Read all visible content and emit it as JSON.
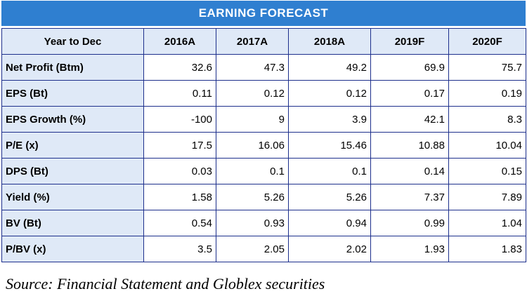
{
  "title": "EARNING FORECAST",
  "header": [
    "Year to Dec",
    "2016A",
    "2017A",
    "2018A",
    "2019F",
    "2020F"
  ],
  "rows": [
    {
      "label": "Net Profit (Btm)",
      "values": [
        "32.6",
        "47.3",
        "49.2",
        "69.9",
        "75.7"
      ]
    },
    {
      "label": "EPS (Bt)",
      "values": [
        "0.11",
        "0.12",
        "0.12",
        "0.17",
        "0.19"
      ]
    },
    {
      "label": "EPS Growth (%)",
      "values": [
        "-100",
        "9",
        "3.9",
        "42.1",
        "8.3"
      ]
    },
    {
      "label": "P/E (x)",
      "values": [
        "17.5",
        "16.06",
        "15.46",
        "10.88",
        "10.04"
      ]
    },
    {
      "label": "DPS (Bt)",
      "values": [
        "0.03",
        "0.1",
        "0.1",
        "0.14",
        "0.15"
      ]
    },
    {
      "label": "Yield (%)",
      "values": [
        "1.58",
        "5.26",
        "5.26",
        "7.37",
        "7.89"
      ]
    },
    {
      "label": "BV (Bt)",
      "values": [
        "0.54",
        "0.93",
        "0.94",
        "0.99",
        "1.04"
      ]
    },
    {
      "label": "P/BV (x)",
      "values": [
        "3.5",
        "2.05",
        "2.02",
        "1.93",
        "1.83"
      ]
    }
  ],
  "source": "Source: Financial Statement and Globlex securities"
}
